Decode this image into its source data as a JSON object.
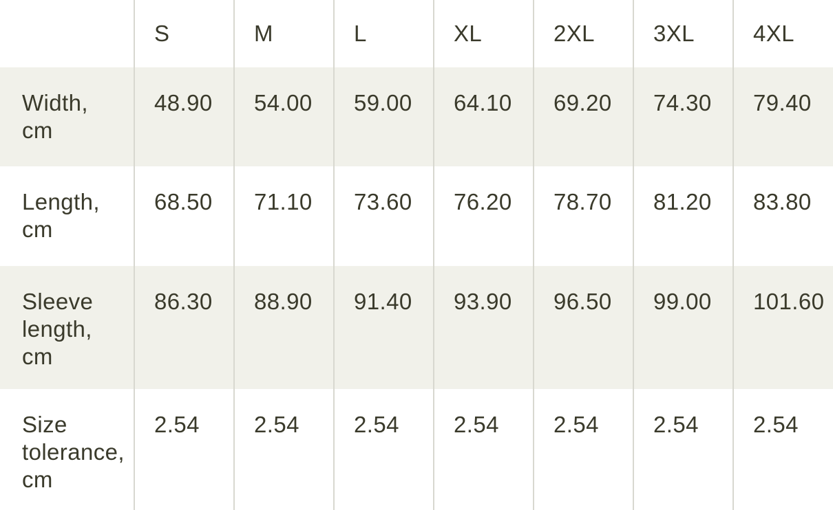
{
  "size_chart": {
    "columns": [
      "S",
      "M",
      "L",
      "XL",
      "2XL",
      "3XL",
      "4XL"
    ],
    "rows": [
      {
        "label": "Width,\ncm",
        "values": [
          "48.90",
          "54.00",
          "59.00",
          "64.10",
          "69.20",
          "74.30",
          "79.40"
        ]
      },
      {
        "label": "Length,\ncm",
        "values": [
          "68.50",
          "71.10",
          "73.60",
          "76.20",
          "78.70",
          "81.20",
          "83.80"
        ]
      },
      {
        "label": "Sleeve\nlength,\ncm",
        "values": [
          "86.30",
          "88.90",
          "91.40",
          "93.90",
          "96.50",
          "99.00",
          "101.60"
        ]
      },
      {
        "label": "Size\ntolerance,\ncm",
        "values": [
          "2.54",
          "2.54",
          "2.54",
          "2.54",
          "2.54",
          "2.54",
          "2.54"
        ]
      }
    ],
    "colors": {
      "shaded_row_background": "#f1f1ea",
      "plain_row_background": "#ffffff",
      "text": "#3a3a2b",
      "divider": "#d8d8d0"
    }
  }
}
